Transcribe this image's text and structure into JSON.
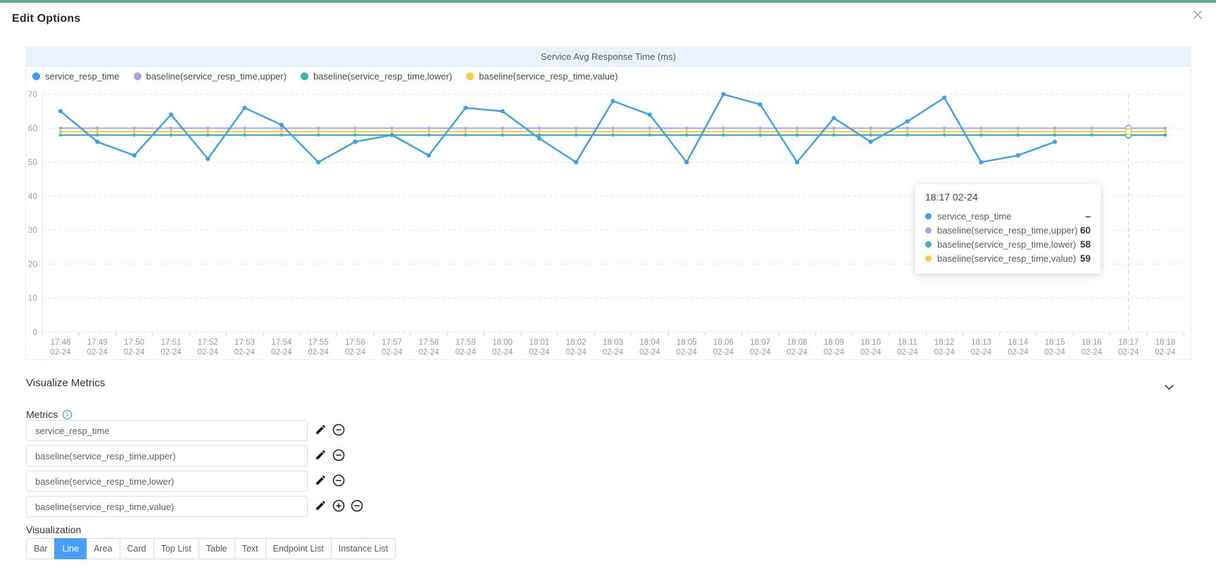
{
  "window": {
    "title": "Edit Options"
  },
  "chart": {
    "title": "Service Avg Response Time (ms)",
    "tooltip": {
      "header": "18:17 02-24",
      "rows": [
        {
          "name": "service_resp_time",
          "value": "–"
        },
        {
          "name": "baseline(service_resp_time,upper)",
          "value": "60"
        },
        {
          "name": "baseline(service_resp_time,lower)",
          "value": "58"
        },
        {
          "name": "baseline(service_resp_time,value)",
          "value": "59"
        }
      ]
    }
  },
  "chart_data": {
    "type": "line",
    "title": "Service Avg Response Time (ms)",
    "x": [
      "17:48",
      "17:49",
      "17:50",
      "17:51",
      "17:52",
      "17:53",
      "17:54",
      "17:55",
      "17:56",
      "17:57",
      "17:58",
      "17:59",
      "18:00",
      "18:01",
      "18:02",
      "18:03",
      "18:04",
      "18:05",
      "18:06",
      "18:07",
      "18:08",
      "18:09",
      "18:10",
      "18:11",
      "18:12",
      "18:13",
      "18:14",
      "18:15",
      "18:16",
      "18:17",
      "18:18"
    ],
    "x_date": "02-24",
    "ylim": [
      0,
      70
    ],
    "y_ticks": [
      0,
      10,
      20,
      30,
      40,
      50,
      60,
      70
    ],
    "grid": true,
    "legend_position": "top-left",
    "axis_pointer_index": 29,
    "series": [
      {
        "name": "service_resp_time",
        "color": "#3b9fe9",
        "values": [
          65,
          56,
          52,
          64,
          51,
          66,
          61,
          50,
          56,
          58,
          52,
          66,
          65,
          57,
          50,
          68,
          64,
          50,
          70,
          67,
          50,
          63,
          56,
          62,
          69,
          50,
          52,
          56,
          null,
          null,
          null
        ]
      },
      {
        "name": "baseline(service_resp_time,upper)",
        "color": "#a2a5e6",
        "constant": 60
      },
      {
        "name": "baseline(service_resp_time,lower)",
        "color": "#35b5ab",
        "constant": 58
      },
      {
        "name": "baseline(service_resp_time,value)",
        "color": "#f7cc45",
        "constant": 59
      }
    ]
  },
  "section": {
    "title": "Visualize Metrics"
  },
  "metrics": {
    "label": "Metrics",
    "items": [
      {
        "value": "service_resp_time",
        "actions": [
          "edit",
          "remove"
        ]
      },
      {
        "value": "baseline(service_resp_time,upper)",
        "actions": [
          "edit",
          "remove"
        ]
      },
      {
        "value": "baseline(service_resp_time,lower)",
        "actions": [
          "edit",
          "remove"
        ]
      },
      {
        "value": "baseline(service_resp_time,value)",
        "actions": [
          "edit",
          "add",
          "remove"
        ]
      }
    ]
  },
  "visualization": {
    "label": "Visualization",
    "options": [
      "Bar",
      "Line",
      "Area",
      "Card",
      "Top List",
      "Table",
      "Text",
      "Endpoint List",
      "Instance List"
    ],
    "active": "Line"
  }
}
